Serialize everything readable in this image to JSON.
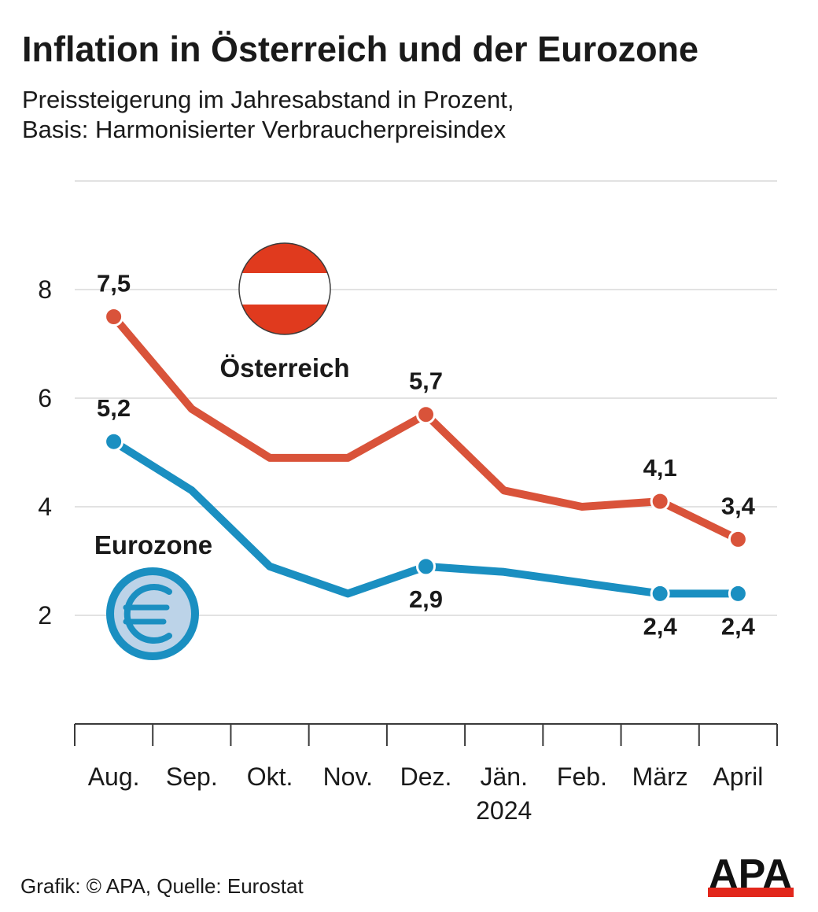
{
  "title": "Inflation in Österreich und der Eurozone",
  "subtitle_lines": [
    "Preissteigerung im Jahresabstand in Prozent,",
    "Basis: Harmonisierter Verbraucherpreisindex"
  ],
  "footer": "Grafik: © APA, Quelle: Eurostat",
  "logo_text": "APA",
  "colors": {
    "austria": "#d9533a",
    "eurozone": "#1a8fc1",
    "flag_red": "#e03a1e",
    "euro_fill": "#bcd3e8",
    "grid": "#d9d9d9",
    "logo_bar": "#e2271c"
  },
  "icons": {
    "austria": "austria-flag-icon",
    "eurozone": "euro-coin-icon"
  },
  "chart_data": {
    "type": "line",
    "categories": [
      "Aug.",
      "Sep.",
      "Okt.",
      "Nov.",
      "Dez.",
      "Jän.",
      "Feb.",
      "März",
      "April"
    ],
    "year_label": {
      "text": "2024",
      "under_category": "Jän."
    },
    "yticks": [
      2,
      4,
      6,
      8
    ],
    "ylim": [
      0,
      10
    ],
    "grid": true,
    "series": [
      {
        "name": "Österreich",
        "color": "#d9533a",
        "values": [
          7.5,
          5.8,
          4.9,
          4.9,
          5.7,
          4.3,
          4.0,
          4.1,
          3.4
        ],
        "labels": [
          {
            "index": 0,
            "text": "7,5",
            "position": "above"
          },
          {
            "index": 4,
            "text": "5,7",
            "position": "above"
          },
          {
            "index": 7,
            "text": "4,1",
            "position": "above"
          },
          {
            "index": 8,
            "text": "3,4",
            "position": "above"
          }
        ]
      },
      {
        "name": "Eurozone",
        "color": "#1a8fc1",
        "values": [
          5.2,
          4.3,
          2.9,
          2.4,
          2.9,
          2.8,
          2.6,
          2.4,
          2.4
        ],
        "labels": [
          {
            "index": 0,
            "text": "5,2",
            "position": "above"
          },
          {
            "index": 4,
            "text": "2,9",
            "position": "below"
          },
          {
            "index": 7,
            "text": "2,4",
            "position": "below"
          },
          {
            "index": 8,
            "text": "2,4",
            "position": "below"
          }
        ]
      }
    ]
  }
}
